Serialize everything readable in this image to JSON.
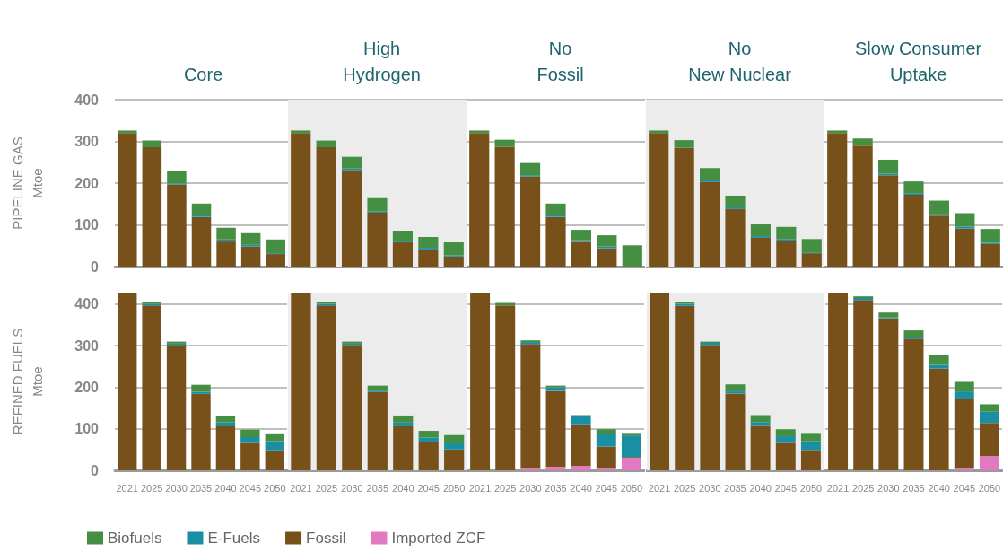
{
  "chart_data": [
    {
      "type": "bar",
      "title": "Core",
      "ylabel": "PIPELINE GAS\nMtoe",
      "stacked": true,
      "grid": "y",
      "tick_labels": "y",
      "categories": [
        "2021",
        "2025",
        "2030",
        "2035",
        "2040",
        "2045",
        "2050"
      ],
      "ylim": [
        0,
        400
      ],
      "yticks": [
        0,
        100,
        200,
        300,
        400
      ],
      "series": [
        {
          "color": "#77501a",
          "values": [
            320,
            286,
            196,
            119,
            60,
            48,
            30
          ]
        },
        {
          "color": "#1a8fa3",
          "values": [
            0,
            0,
            3,
            4,
            5,
            4,
            2
          ]
        },
        {
          "color": "#448f41",
          "values": [
            6,
            16,
            30,
            28,
            28,
            28,
            33
          ]
        }
      ]
    },
    {
      "type": "bar",
      "title": "High\nHydrogen",
      "stacked": true,
      "grid": "y",
      "tick_labels": false,
      "categories": [
        "2021",
        "2025",
        "2030",
        "2035",
        "2040",
        "2045",
        "2050"
      ],
      "ylim": [
        0,
        400
      ],
      "yticks": [
        0,
        100,
        200,
        300,
        400
      ],
      "bands": [
        {
          "axis": "x",
          "from": "2021",
          "to": "2050",
          "color": "#ececec"
        }
      ],
      "series": [
        {
          "color": "#77501a",
          "values": [
            320,
            286,
            231,
            129,
            58,
            41,
            24
          ]
        },
        {
          "color": "#1a8fa3",
          "values": [
            0,
            0,
            4,
            3,
            2,
            4,
            3
          ]
        },
        {
          "color": "#448f41",
          "values": [
            6,
            16,
            28,
            32,
            26,
            26,
            31
          ]
        }
      ]
    },
    {
      "type": "bar",
      "title": "No\nFossil",
      "stacked": true,
      "grid": "y",
      "tick_labels": false,
      "categories": [
        "2021",
        "2025",
        "2030",
        "2035",
        "2040",
        "2045",
        "2050"
      ],
      "ylim": [
        0,
        400
      ],
      "yticks": [
        0,
        100,
        200,
        300,
        400
      ],
      "series": [
        {
          "color": "#77501a",
          "values": [
            320,
            287,
            216,
            119,
            59,
            44,
            0
          ]
        },
        {
          "color": "#1a8fa3",
          "values": [
            0,
            0,
            3,
            4,
            4,
            4,
            0
          ]
        },
        {
          "color": "#448f41",
          "values": [
            6,
            17,
            29,
            28,
            25,
            27,
            51
          ]
        }
      ]
    },
    {
      "type": "bar",
      "title": "No\nNew Nuclear",
      "stacked": true,
      "grid": "y",
      "tick_labels": false,
      "categories": [
        "2021",
        "2025",
        "2030",
        "2035",
        "2040",
        "2045",
        "2050"
      ],
      "ylim": [
        0,
        400
      ],
      "yticks": [
        0,
        100,
        200,
        300,
        400
      ],
      "bands": [
        {
          "axis": "x",
          "from": "2021",
          "to": "2050",
          "color": "#ececec"
        }
      ],
      "series": [
        {
          "color": "#77501a",
          "values": [
            320,
            285,
            203,
            138,
            69,
            62,
            32
          ]
        },
        {
          "color": "#1a8fa3",
          "values": [
            0,
            0,
            4,
            4,
            4,
            4,
            2
          ]
        },
        {
          "color": "#448f41",
          "values": [
            6,
            18,
            29,
            28,
            28,
            29,
            32
          ]
        }
      ]
    },
    {
      "type": "bar",
      "title": "Slow Consumer\nUptake",
      "stacked": true,
      "grid": "y",
      "tick_labels": false,
      "categories": [
        "2021",
        "2025",
        "2030",
        "2035",
        "2040",
        "2045",
        "2050"
      ],
      "ylim": [
        0,
        400
      ],
      "yticks": [
        0,
        100,
        200,
        300,
        400
      ],
      "series": [
        {
          "color": "#77501a",
          "values": [
            320,
            290,
            219,
            172,
            122,
            91,
            54
          ]
        },
        {
          "color": "#1a8fa3",
          "values": [
            0,
            0,
            4,
            4,
            3,
            5,
            3
          ]
        },
        {
          "color": "#448f41",
          "values": [
            6,
            17,
            33,
            28,
            33,
            32,
            33
          ]
        }
      ]
    },
    {
      "type": "bar",
      "ylabel": "REFINED FUELS\nMtoe",
      "stacked": true,
      "grid": "y",
      "categories": [
        "2021",
        "2025",
        "2030",
        "2035",
        "2040",
        "2045",
        "2050"
      ],
      "ylim": [
        0,
        428
      ],
      "yticks": [
        0,
        100,
        200,
        300,
        400
      ],
      "series": [
        {
          "color": "#e17ac0",
          "values": [
            0,
            0,
            0,
            0,
            0,
            0,
            0
          ]
        },
        {
          "color": "#77501a",
          "values": [
            428,
            397,
            302,
            184,
            106,
            66,
            48
          ]
        },
        {
          "color": "#1a8fa3",
          "values": [
            0,
            4,
            3,
            5,
            9,
            14,
            22
          ]
        },
        {
          "color": "#448f41",
          "values": [
            0,
            5,
            5,
            17,
            17,
            18,
            19
          ]
        }
      ]
    },
    {
      "type": "bar",
      "stacked": true,
      "grid": "y",
      "tick_labels": "x",
      "legend": "bottom left",
      "categories": [
        "2021",
        "2025",
        "2030",
        "2035",
        "2040",
        "2045",
        "2050"
      ],
      "ylim": [
        0,
        428
      ],
      "yticks": [
        0,
        100,
        200,
        300,
        400
      ],
      "bands": [
        {
          "axis": "x",
          "from": "2021",
          "to": "2050",
          "color": "#ececec"
        }
      ],
      "series": [
        {
          "name": "Imported ZCF",
          "color": "#e17ac0",
          "values": [
            0,
            0,
            0,
            0,
            0,
            0,
            0
          ]
        },
        {
          "name": "Fossil",
          "color": "#77501a",
          "values": [
            428,
            397,
            302,
            189,
            106,
            68,
            50
          ]
        },
        {
          "name": "E-Fuels",
          "color": "#1a8fa3",
          "values": [
            0,
            4,
            3,
            3,
            9,
            11,
            15
          ]
        },
        {
          "name": "Biofuels",
          "color": "#448f41",
          "values": [
            0,
            5,
            5,
            12,
            17,
            16,
            20
          ]
        }
      ]
    },
    {
      "type": "bar",
      "stacked": true,
      "grid": "y",
      "tick_labels": "x",
      "categories": [
        "2021",
        "2025",
        "2030",
        "2035",
        "2040",
        "2045",
        "2050"
      ],
      "ylim": [
        0,
        428
      ],
      "yticks": [
        0,
        100,
        200,
        300,
        400
      ],
      "series": [
        {
          "color": "#e17ac0",
          "values": [
            0,
            0,
            6,
            8,
            10,
            6,
            30
          ]
        },
        {
          "color": "#77501a",
          "values": [
            428,
            397,
            298,
            183,
            101,
            51,
            2
          ]
        },
        {
          "color": "#1a8fa3",
          "values": [
            0,
            0,
            5,
            9,
            19,
            30,
            52
          ]
        },
        {
          "color": "#448f41",
          "values": [
            0,
            6,
            4,
            4,
            3,
            12,
            6
          ]
        }
      ]
    },
    {
      "type": "bar",
      "stacked": true,
      "grid": "y",
      "tick_labels": "x",
      "categories": [
        "2021",
        "2025",
        "2030",
        "2035",
        "2040",
        "2045",
        "2050"
      ],
      "ylim": [
        0,
        428
      ],
      "yticks": [
        0,
        100,
        200,
        300,
        400
      ],
      "bands": [
        {
          "axis": "x",
          "from": "2021",
          "to": "2050",
          "color": "#ececec"
        }
      ],
      "series": [
        {
          "color": "#e17ac0",
          "values": [
            0,
            0,
            0,
            0,
            0,
            0,
            0
          ]
        },
        {
          "color": "#77501a",
          "values": [
            428,
            396,
            302,
            185,
            107,
            66,
            49
          ]
        },
        {
          "color": "#1a8fa3",
          "values": [
            0,
            5,
            5,
            5,
            9,
            16,
            21
          ]
        },
        {
          "color": "#448f41",
          "values": [
            0,
            5,
            3,
            17,
            17,
            17,
            20
          ]
        }
      ]
    },
    {
      "type": "bar",
      "stacked": true,
      "grid": "y",
      "tick_labels": "x",
      "categories": [
        "2021",
        "2025",
        "2030",
        "2035",
        "2040",
        "2045",
        "2050"
      ],
      "ylim": [
        0,
        428
      ],
      "yticks": [
        0,
        100,
        200,
        300,
        400
      ],
      "series": [
        {
          "color": "#e17ac0",
          "values": [
            0,
            0,
            0,
            0,
            0,
            6,
            34
          ]
        },
        {
          "color": "#77501a",
          "values": [
            428,
            410,
            366,
            317,
            245,
            166,
            80
          ]
        },
        {
          "color": "#1a8fa3",
          "values": [
            0,
            5,
            2,
            3,
            9,
            18,
            27
          ]
        },
        {
          "color": "#448f41",
          "values": [
            0,
            4,
            12,
            17,
            23,
            23,
            18
          ]
        }
      ]
    }
  ]
}
